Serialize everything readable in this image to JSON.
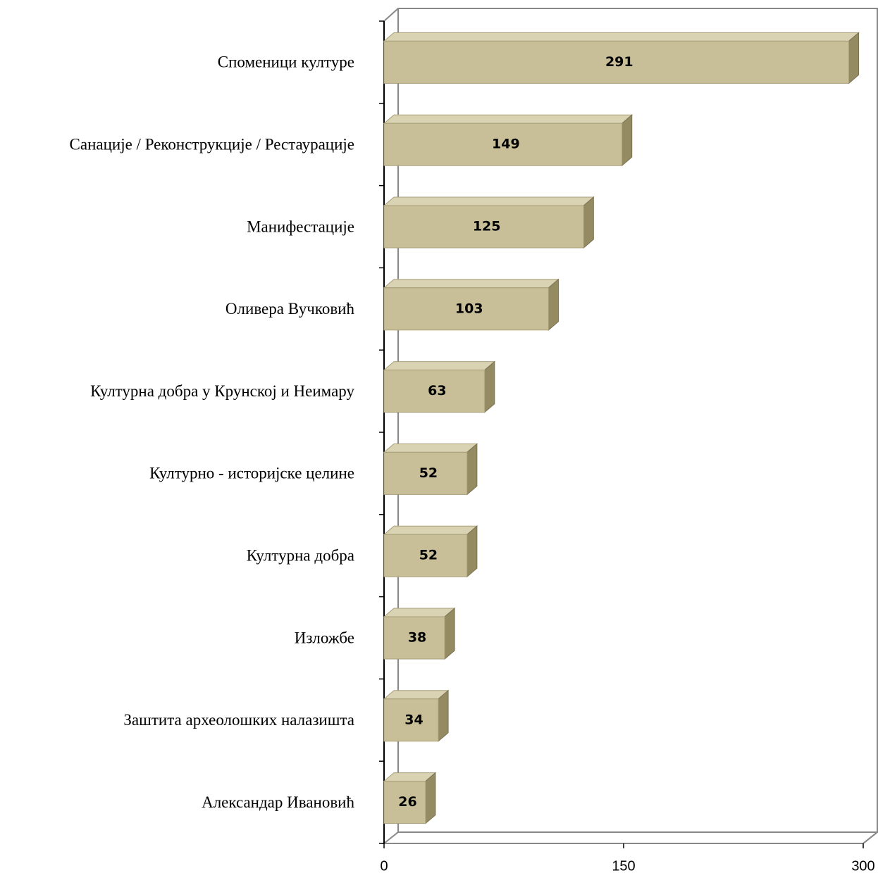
{
  "chart_data": {
    "type": "bar",
    "orientation": "horizontal",
    "categories": [
      "Споменици културе",
      "Санације / Реконструкције / Рестаурације",
      "Манифестације",
      "Оливера Вучковић",
      "Културна добра у Крунској и Неимару",
      "Културно - историјске целине",
      "Културна добра",
      "Изложбе",
      "Заштита археолошких налазишта",
      "Александар Ивановић"
    ],
    "values": [
      291,
      149,
      125,
      103,
      63,
      52,
      52,
      38,
      34,
      26
    ],
    "color": "#c8be98",
    "xlim": [
      0,
      300
    ],
    "xticks": [
      0,
      150,
      300
    ],
    "grid": false
  }
}
